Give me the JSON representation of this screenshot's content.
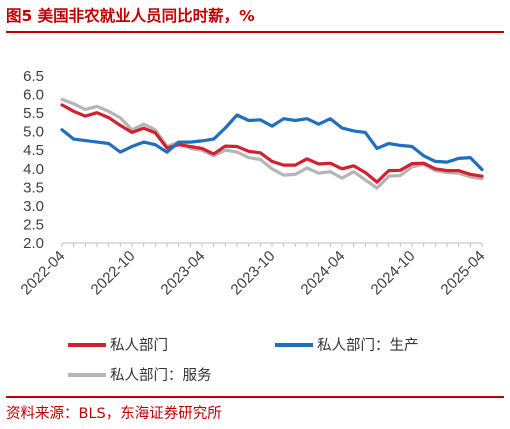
{
  "header": {
    "title": "图5  美国非农就业人员同比时薪，%"
  },
  "footer": {
    "source": "资料来源：BLS，东海证券研究所"
  },
  "colors": {
    "accent": "#c00000",
    "private": "#d2202f",
    "goods": "#1f6fbf",
    "services": "#b5b5b5"
  },
  "chart_data": {
    "type": "line",
    "x_ticks": [
      "2022-04",
      "2022-10",
      "2023-04",
      "2023-10",
      "2024-04",
      "2024-10",
      "2025-04"
    ],
    "ylim": [
      2.0,
      6.5
    ],
    "y_ticks": [
      "2.0",
      "2.5",
      "3.0",
      "3.5",
      "4.0",
      "4.5",
      "5.0",
      "5.5",
      "6.0",
      "6.5"
    ],
    "x_start": "2022-04",
    "series": [
      {
        "name": "私人部门",
        "color": "#d2202f",
        "values": [
          5.72,
          5.55,
          5.42,
          5.51,
          5.38,
          5.17,
          4.98,
          5.09,
          4.97,
          4.56,
          4.65,
          4.6,
          4.55,
          4.4,
          4.61,
          4.6,
          4.47,
          4.43,
          4.2,
          4.1,
          4.1,
          4.27,
          4.13,
          4.15,
          4.0,
          4.08,
          3.9,
          3.64,
          3.95,
          3.96,
          4.14,
          4.15,
          4.0,
          3.95,
          3.95,
          3.85,
          3.8
        ]
      },
      {
        "name": "私人部门：生产",
        "color": "#1f6fbf",
        "values": [
          5.05,
          4.8,
          4.76,
          4.72,
          4.68,
          4.45,
          4.6,
          4.72,
          4.65,
          4.45,
          4.72,
          4.72,
          4.75,
          4.8,
          5.1,
          5.45,
          5.3,
          5.32,
          5.15,
          5.35,
          5.3,
          5.35,
          5.2,
          5.35,
          5.1,
          5.02,
          4.98,
          4.55,
          4.68,
          4.63,
          4.6,
          4.35,
          4.2,
          4.18,
          4.28,
          4.3,
          3.98
        ]
      },
      {
        "name": "私人部门：服务",
        "color": "#b5b5b5",
        "values": [
          5.87,
          5.75,
          5.6,
          5.68,
          5.55,
          5.37,
          5.05,
          5.2,
          5.05,
          4.6,
          4.72,
          4.55,
          4.5,
          4.35,
          4.5,
          4.45,
          4.3,
          4.25,
          4.0,
          3.83,
          3.85,
          4.02,
          3.88,
          3.92,
          3.75,
          3.92,
          3.7,
          3.48,
          3.8,
          3.82,
          4.05,
          4.12,
          3.95,
          3.9,
          3.88,
          3.78,
          3.73
        ]
      }
    ]
  }
}
